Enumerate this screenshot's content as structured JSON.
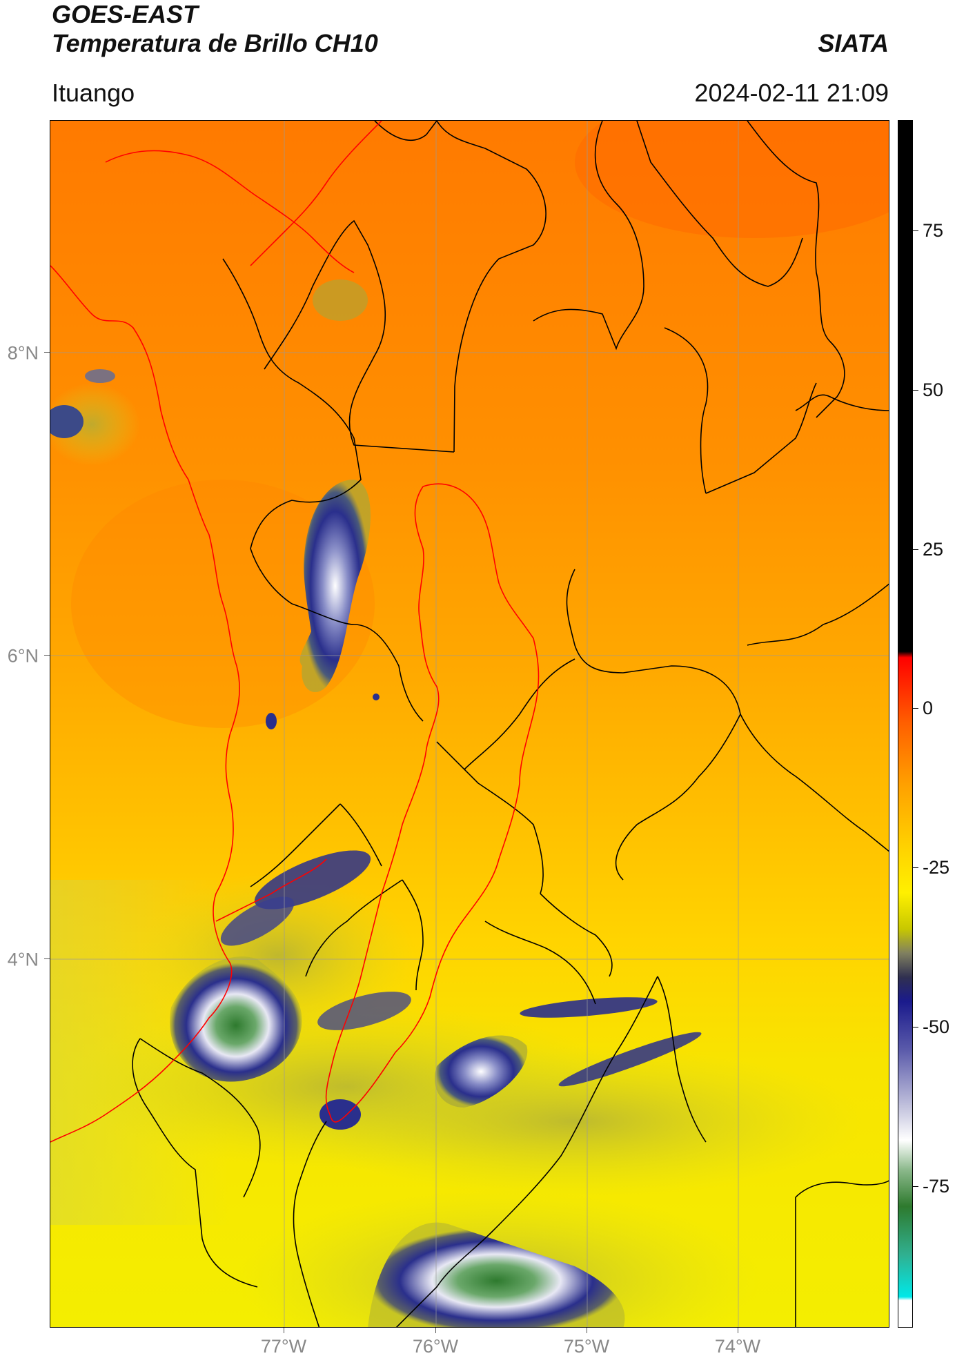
{
  "header": {
    "title": "GOES-EAST",
    "subtitle": "Temperatura de Brillo CH10",
    "source": "SIATA",
    "region": "Ituango",
    "timestamp": "2024-02-11 21:09"
  },
  "map": {
    "lat_labels": [
      "8°N",
      "6°N",
      "4°N"
    ],
    "lon_labels": [
      "77°W",
      "76°W",
      "75°W",
      "74°W"
    ],
    "lat_range": [
      1.6,
      9.5
    ],
    "lon_range": [
      -78.55,
      -73.0
    ],
    "colors": {
      "boundary": "#000000",
      "basin": "#ff0000",
      "gridline": "#9a9a9a",
      "cold_cloud": "#2b2e8c",
      "warm_surface": "#ff9a00"
    }
  },
  "colorbar": {
    "ticks": [
      "75",
      "50",
      "25",
      "0",
      "-25",
      "-50",
      "-75"
    ],
    "range": [
      -100,
      92
    ]
  }
}
